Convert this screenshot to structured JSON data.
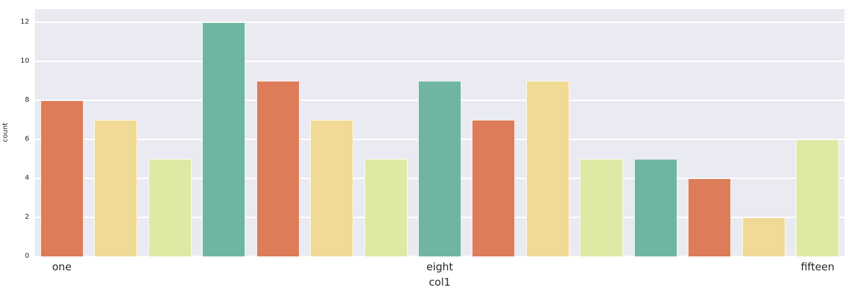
{
  "chart_data": {
    "type": "bar",
    "title": "",
    "xlabel": "col1",
    "ylabel": "count",
    "n_bars": 15,
    "values": [
      8,
      7,
      5,
      12,
      9,
      7,
      5,
      9,
      7,
      9,
      5,
      5,
      4,
      2,
      6
    ],
    "bar_color_cycle": [
      "#dd7c58",
      "#f0da96",
      "#dee9a4",
      "#6fb5a1"
    ],
    "x_ticks": [
      {
        "index": 0,
        "label": "one"
      },
      {
        "index": 7,
        "label": "eight"
      },
      {
        "index": 14,
        "label": "fifteen"
      }
    ],
    "y_ticks": [
      0,
      2,
      4,
      6,
      8,
      10,
      12
    ],
    "ylim": [
      0,
      12.67
    ],
    "bar_rel_width": 0.8,
    "grid": true,
    "legend": false,
    "plot_bg_color": "#eaeaf2",
    "grid_color": "#ffffff",
    "text_color": "#262626"
  }
}
